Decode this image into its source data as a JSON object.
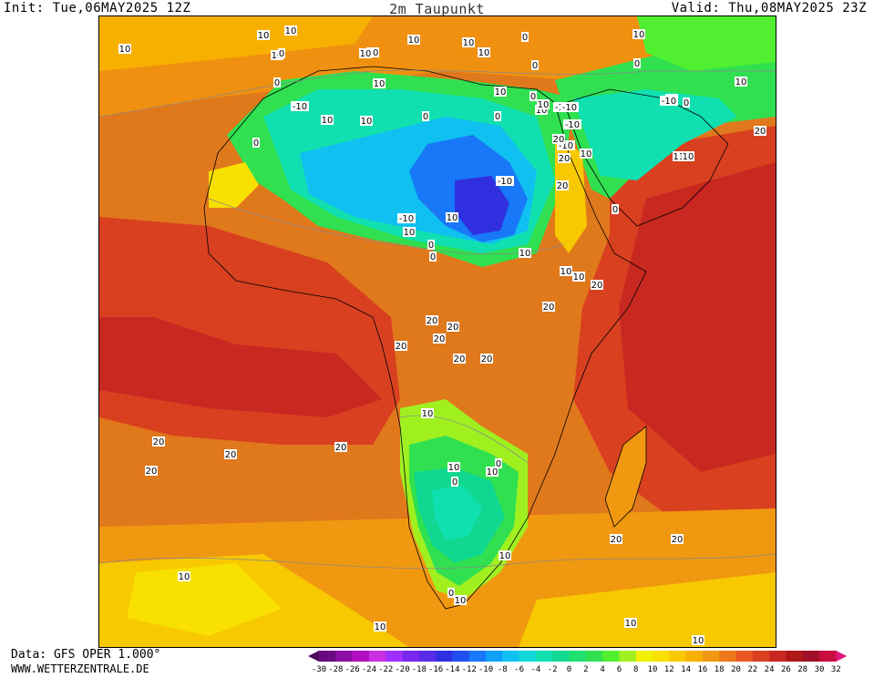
{
  "header": {
    "init": "Init: Tue,06MAY2025 12Z",
    "title": "2m Taupunkt",
    "valid": "Valid: Thu,08MAY2025 23Z"
  },
  "footer": {
    "data_source": "Data: GFS OPER 1.000°",
    "website": "WWW.WETTERZENTRALE.DE"
  },
  "legend": {
    "ticks": [
      "-30",
      "-28",
      "-26",
      "-24",
      "-22",
      "-20",
      "-18",
      "-16",
      "-14",
      "-12",
      "-10",
      "-8",
      "-6",
      "-4",
      "-2",
      "0",
      "2",
      "4",
      "6",
      "8",
      "10",
      "12",
      "14",
      "16",
      "18",
      "20",
      "22",
      "24",
      "26",
      "28",
      "30",
      "32"
    ],
    "colors": [
      "#4a0a5a",
      "#6a0a80",
      "#8c10a4",
      "#b010c0",
      "#c830e0",
      "#a030ff",
      "#7a28f0",
      "#5a2ce8",
      "#3030e0",
      "#2050f0",
      "#1878f8",
      "#10a0f8",
      "#10c0f0",
      "#10d8d8",
      "#10e0b0",
      "#10d890",
      "#20e070",
      "#30e050",
      "#50f030",
      "#a0f020",
      "#f0f000",
      "#f8e000",
      "#f8c800",
      "#f8b000",
      "#f09810",
      "#f07818",
      "#e85820",
      "#d84020",
      "#c82820",
      "#b01818",
      "#a01028",
      "#c81040",
      "#e01878"
    ]
  },
  "map": {
    "contour_labels": [
      "10",
      "10",
      "10",
      "10",
      "10",
      "10",
      "10",
      "10",
      "0",
      "0",
      "10",
      "0",
      "10",
      "0",
      "0",
      "10",
      "10",
      "10",
      "0",
      "10",
      "-10",
      "10",
      "0",
      "0",
      "10",
      "-10",
      "-10",
      "10",
      "-10",
      "0",
      "10",
      "0",
      "-10",
      "-10",
      "20",
      "10",
      "20",
      "20",
      "110",
      "10",
      "0",
      "20",
      "-10",
      "10",
      "-10",
      "10",
      "0",
      "0",
      "10",
      "10",
      "10",
      "20",
      "20",
      "20",
      "20",
      "20",
      "20",
      "20",
      "20",
      "20",
      "20",
      "20",
      "20",
      "10",
      "0",
      "10",
      "10",
      "0",
      "10",
      "0",
      "10",
      "20",
      "20",
      "10",
      "10",
      "10",
      "10"
    ]
  }
}
